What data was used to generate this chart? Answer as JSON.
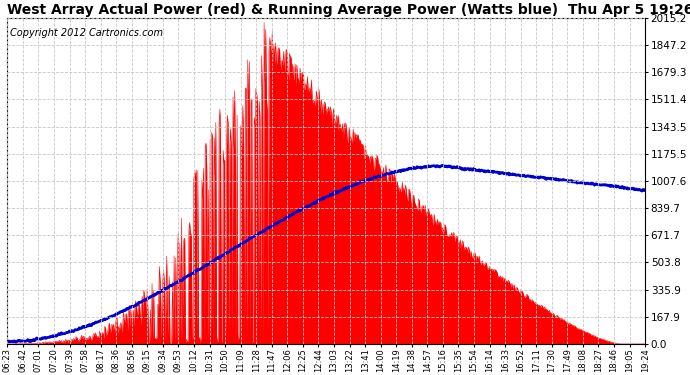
{
  "title": "West Array Actual Power (red) & Running Average Power (Watts blue)  Thu Apr 5 19:26",
  "copyright": "Copyright 2012 Cartronics.com",
  "yticks": [
    0.0,
    167.9,
    335.9,
    503.8,
    671.7,
    839.7,
    1007.6,
    1175.5,
    1343.5,
    1511.4,
    1679.3,
    1847.2,
    2015.2
  ],
  "ymax": 2015.2,
  "ymin": 0.0,
  "xtick_labels": [
    "06:23",
    "06:42",
    "07:01",
    "07:20",
    "07:39",
    "07:58",
    "08:17",
    "08:36",
    "08:56",
    "09:15",
    "09:34",
    "09:53",
    "10:12",
    "10:31",
    "10:50",
    "11:09",
    "11:28",
    "11:47",
    "12:06",
    "12:25",
    "12:44",
    "13:03",
    "13:22",
    "13:41",
    "14:00",
    "14:19",
    "14:38",
    "14:57",
    "15:16",
    "15:35",
    "15:54",
    "16:14",
    "16:33",
    "16:52",
    "17:11",
    "17:30",
    "17:49",
    "18:08",
    "18:27",
    "18:46",
    "19:05",
    "19:24"
  ],
  "bg_color": "#ffffff",
  "plot_bg_color": "#ffffff",
  "grid_color": "#c8c8c8",
  "red_color": "#ff0000",
  "blue_color": "#0000cc",
  "title_color": "#000000",
  "title_fontsize": 10,
  "copyright_fontsize": 7
}
